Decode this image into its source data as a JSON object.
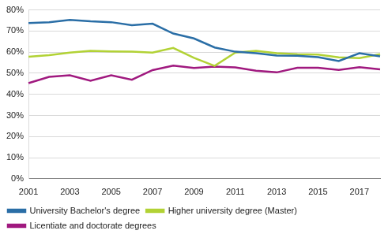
{
  "chart_data": {
    "type": "line",
    "categories": [
      "2001",
      null,
      "2003",
      null,
      "2005",
      null,
      "2007",
      null,
      "2009",
      null,
      "2011",
      null,
      "2013",
      null,
      "2015",
      null,
      "2017",
      null
    ],
    "series": [
      {
        "name": "University Bachelor's degree",
        "color": "#2a6ea6",
        "values": [
          73.8,
          74.2,
          75.3,
          74.6,
          74.2,
          72.8,
          73.5,
          68.8,
          66.5,
          62.2,
          60.2,
          59.5,
          58.4,
          58.3,
          57.6,
          55.8,
          59.5,
          58.0
        ]
      },
      {
        "name": "Higher university degree (Master)",
        "color": "#b2d235",
        "values": [
          57.8,
          58.6,
          59.8,
          60.6,
          60.3,
          60.2,
          59.8,
          62.0,
          57.3,
          53.5,
          59.8,
          60.6,
          59.5,
          59.0,
          58.8,
          57.5,
          57.2,
          59.0
        ]
      },
      {
        "name": "Licentiate and doctorate degrees",
        "color": "#a0197f",
        "values": [
          45.3,
          48.3,
          49.0,
          46.4,
          49.0,
          46.9,
          51.5,
          53.6,
          52.5,
          53.1,
          52.8,
          51.2,
          50.4,
          52.6,
          52.6,
          51.6,
          52.9,
          51.8
        ]
      }
    ],
    "ylim": [
      0,
      80
    ],
    "yticks": [
      {
        "value": 0,
        "label": "0%"
      },
      {
        "value": 10,
        "label": "10%"
      },
      {
        "value": 20,
        "label": "20%"
      },
      {
        "value": 30,
        "label": "30%"
      },
      {
        "value": 40,
        "label": "40%"
      },
      {
        "value": 50,
        "label": "50%"
      },
      {
        "value": 60,
        "label": "60%"
      },
      {
        "value": 70,
        "label": "70%"
      },
      {
        "value": 80,
        "label": "80%"
      }
    ],
    "grid": true,
    "legend": "bottom"
  }
}
